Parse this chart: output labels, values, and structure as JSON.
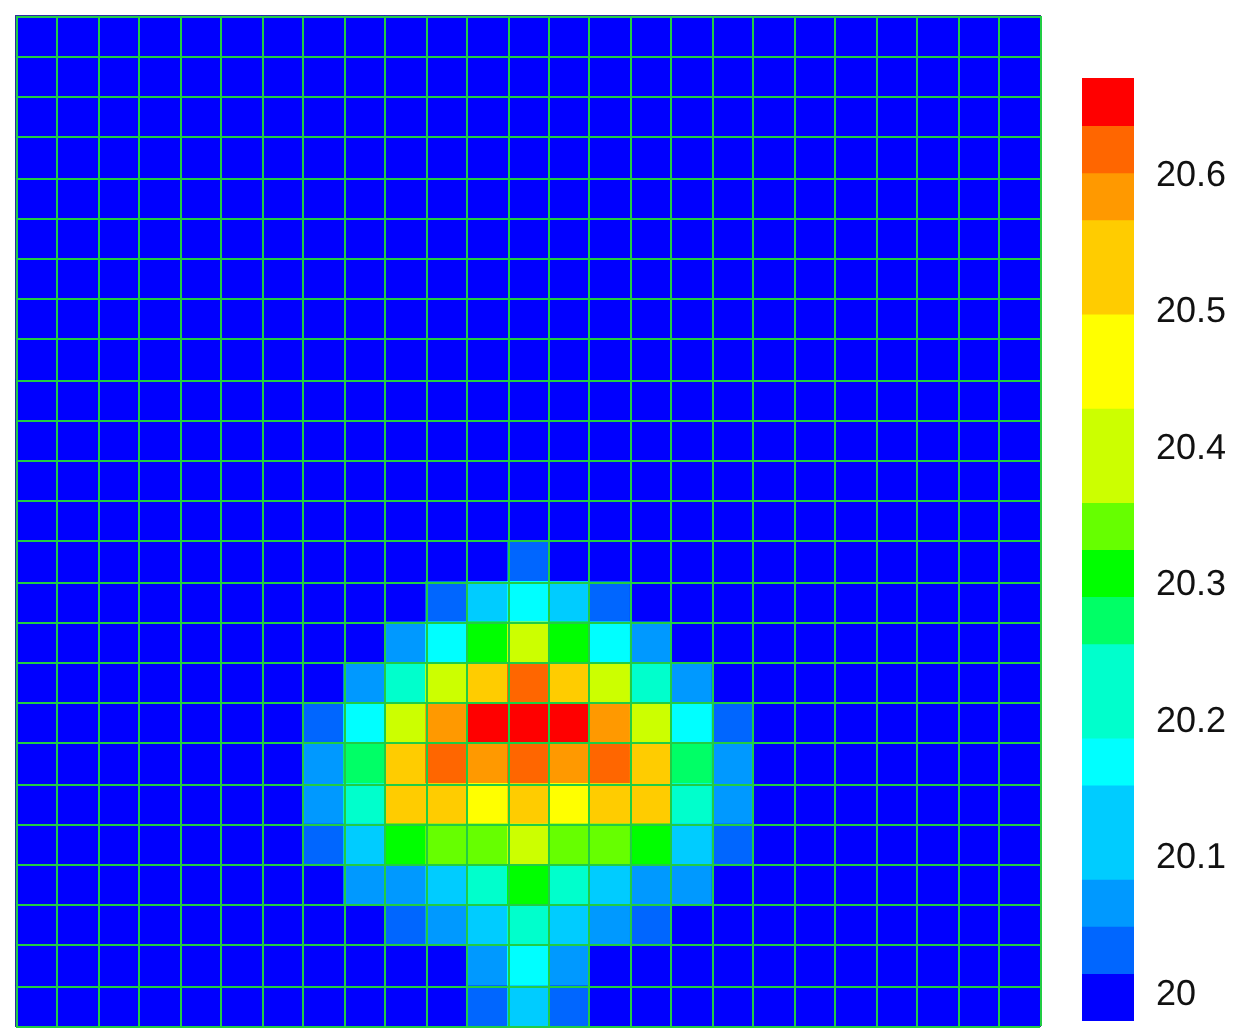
{
  "chart_data": {
    "type": "heatmap",
    "tick_labels": false,
    "grid": true,
    "categories": [
      null,
      null,
      null,
      null,
      null,
      null,
      null,
      null,
      null,
      null,
      null,
      null,
      null,
      null,
      null,
      null,
      null,
      null,
      null,
      null,
      null,
      null,
      null,
      null,
      null
    ],
    "y_categories": [
      null,
      null,
      null,
      null,
      null,
      null,
      null,
      null,
      null,
      null,
      null,
      null,
      null,
      null,
      null,
      null,
      null,
      null,
      null,
      null,
      null,
      null,
      null,
      null,
      null
    ],
    "clim": [
      19.98,
      20.67
    ],
    "cticks": [
      20,
      20.1,
      20.2,
      20.3,
      20.4,
      20.5,
      20.6
    ],
    "colors": [
      "#0000ff",
      "#0066ff",
      "#0099ff",
      "#00ccff",
      "#00ccff",
      "#00ffff",
      "#00ffcc",
      "#00ffcc",
      "#00ff66",
      "#00ff00",
      "#66ff00",
      "#ccff00",
      "#ccff00",
      "#ffff00",
      "#ffff00",
      "#ffcc00",
      "#ffcc00",
      "#ff9900",
      "#ff6600",
      "#ff0000"
    ],
    "cells": [
      [
        20,
        20,
        20,
        20,
        20,
        20,
        20,
        20,
        20,
        20,
        20,
        20,
        20,
        20,
        20,
        20,
        20,
        20,
        20,
        20,
        20,
        20,
        20,
        20,
        20
      ],
      [
        20,
        20,
        20,
        20,
        20,
        20,
        20,
        20,
        20,
        20,
        20,
        20,
        20,
        20,
        20,
        20,
        20,
        20,
        20,
        20,
        20,
        20,
        20,
        20,
        20
      ],
      [
        20,
        20,
        20,
        20,
        20,
        20,
        20,
        20,
        20,
        20,
        20,
        20,
        20,
        20,
        20,
        20,
        20,
        20,
        20,
        20,
        20,
        20,
        20,
        20,
        20
      ],
      [
        20,
        20,
        20,
        20,
        20,
        20,
        20,
        20,
        20,
        20,
        20,
        20,
        20,
        20,
        20,
        20,
        20,
        20,
        20,
        20,
        20,
        20,
        20,
        20,
        20
      ],
      [
        20,
        20,
        20,
        20,
        20,
        20,
        20,
        20,
        20,
        20,
        20,
        20,
        20,
        20,
        20,
        20,
        20,
        20,
        20,
        20,
        20,
        20,
        20,
        20,
        20
      ],
      [
        20,
        20,
        20,
        20,
        20,
        20,
        20,
        20,
        20,
        20,
        20,
        20,
        20,
        20,
        20,
        20,
        20,
        20,
        20,
        20,
        20,
        20,
        20,
        20,
        20
      ],
      [
        20,
        20,
        20,
        20,
        20,
        20,
        20,
        20,
        20,
        20,
        20,
        20,
        20,
        20,
        20,
        20,
        20,
        20,
        20,
        20,
        20,
        20,
        20,
        20,
        20
      ],
      [
        20,
        20,
        20,
        20,
        20,
        20,
        20,
        20,
        20,
        20,
        20,
        20,
        20,
        20,
        20,
        20,
        20,
        20,
        20,
        20,
        20,
        20,
        20,
        20,
        20
      ],
      [
        20,
        20,
        20,
        20,
        20,
        20,
        20,
        20,
        20,
        20,
        20,
        20,
        20,
        20,
        20,
        20,
        20,
        20,
        20,
        20,
        20,
        20,
        20,
        20,
        20
      ],
      [
        20,
        20,
        20,
        20,
        20,
        20,
        20,
        20,
        20,
        20,
        20,
        20,
        20,
        20,
        20,
        20,
        20,
        20,
        20,
        20,
        20,
        20,
        20,
        20,
        20
      ],
      [
        20,
        20,
        20,
        20,
        20,
        20,
        20,
        20,
        20,
        20,
        20,
        20,
        20,
        20,
        20,
        20,
        20,
        20,
        20,
        20,
        20,
        20,
        20,
        20,
        20
      ],
      [
        20,
        20,
        20,
        20,
        20,
        20,
        20,
        20,
        20,
        20,
        20,
        20,
        20,
        20,
        20,
        20,
        20,
        20,
        20,
        20,
        20,
        20,
        20,
        20,
        20
      ],
      [
        20,
        20,
        20,
        20,
        20,
        20,
        20,
        20,
        20,
        20,
        20,
        20,
        20,
        20,
        20,
        20,
        20,
        20,
        20,
        20,
        20,
        20,
        20,
        20,
        20
      ],
      [
        20,
        20,
        20,
        20,
        20,
        20,
        20,
        20,
        20,
        20,
        20,
        20,
        20.03,
        20,
        20,
        20,
        20,
        20,
        20,
        20,
        20,
        20,
        20,
        20,
        20
      ],
      [
        20,
        20,
        20,
        20,
        20,
        20,
        20,
        20,
        20,
        20,
        20.03,
        20.12,
        20.17,
        20.12,
        20.03,
        20,
        20,
        20,
        20,
        20,
        20,
        20,
        20,
        20,
        20
      ],
      [
        20,
        20,
        20,
        20,
        20,
        20,
        20,
        20,
        20,
        20.07,
        20.17,
        20.31,
        20.4,
        20.31,
        20.17,
        20.07,
        20,
        20,
        20,
        20,
        20,
        20,
        20,
        20,
        20
      ],
      [
        20,
        20,
        20,
        20,
        20,
        20,
        20,
        20,
        20.07,
        20.22,
        20.4,
        20.53,
        20.62,
        20.53,
        20.4,
        20.22,
        20.07,
        20,
        20,
        20,
        20,
        20,
        20,
        20,
        20
      ],
      [
        20,
        20,
        20,
        20,
        20,
        20,
        20,
        20.03,
        20.17,
        20.4,
        20.59,
        20.66,
        20.66,
        20.66,
        20.59,
        20.4,
        20.17,
        20.03,
        20,
        20,
        20,
        20,
        20,
        20,
        20
      ],
      [
        20,
        20,
        20,
        20,
        20,
        20,
        20,
        20.07,
        20.28,
        20.53,
        20.62,
        20.59,
        20.62,
        20.59,
        20.62,
        20.53,
        20.28,
        20.07,
        20,
        20,
        20,
        20,
        20,
        20,
        20
      ],
      [
        20,
        20,
        20,
        20,
        20,
        20,
        20,
        20.07,
        20.22,
        20.53,
        20.53,
        20.47,
        20.53,
        20.47,
        20.53,
        20.53,
        20.22,
        20.07,
        20,
        20,
        20,
        20,
        20,
        20,
        20
      ],
      [
        20,
        20,
        20,
        20,
        20,
        20,
        20,
        20.03,
        20.12,
        20.31,
        20.35,
        20.35,
        20.4,
        20.35,
        20.35,
        20.31,
        20.12,
        20.03,
        20,
        20,
        20,
        20,
        20,
        20,
        20
      ],
      [
        20,
        20,
        20,
        20,
        20,
        20,
        20,
        20,
        20.07,
        20.07,
        20.12,
        20.22,
        20.31,
        20.22,
        20.12,
        20.07,
        20.07,
        20,
        20,
        20,
        20,
        20,
        20,
        20,
        20
      ],
      [
        20,
        20,
        20,
        20,
        20,
        20,
        20,
        20,
        20,
        20.03,
        20.07,
        20.12,
        20.22,
        20.12,
        20.07,
        20.03,
        20,
        20,
        20,
        20,
        20,
        20,
        20,
        20,
        20
      ],
      [
        20,
        20,
        20,
        20,
        20,
        20,
        20,
        20,
        20,
        20,
        20,
        20.07,
        20.17,
        20.07,
        20,
        20,
        20,
        20,
        20,
        20,
        20,
        20,
        20,
        20,
        20
      ],
      [
        20,
        20,
        20,
        20,
        20,
        20,
        20,
        20,
        20,
        20,
        20,
        20.03,
        20.12,
        20.03,
        20,
        20,
        20,
        20,
        20,
        20,
        20,
        20,
        20,
        20,
        20
      ]
    ]
  }
}
